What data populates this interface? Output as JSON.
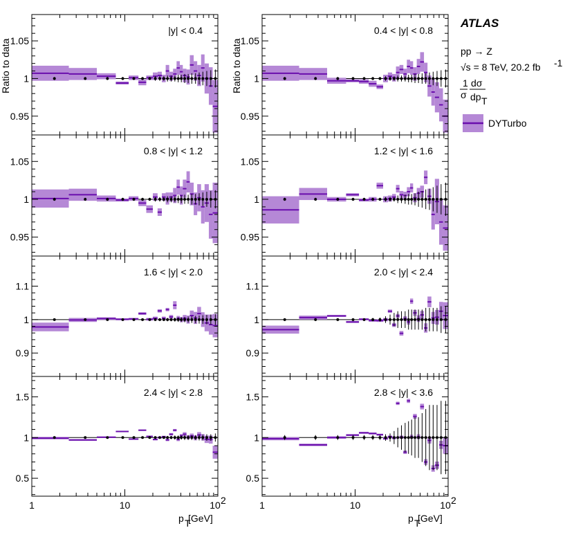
{
  "colors": {
    "band": "#b588d6",
    "line": "#6a0dad",
    "data": "#000000"
  },
  "legend": {
    "experiment": "ATLAS",
    "process": "pp → Z",
    "energy_prefix": "√s = 8 TeV, 20.2 fb",
    "energy_sup": "-1",
    "observable_num": "1",
    "observable_den": "σ",
    "observable_dnum": "dσ",
    "observable_dden": "dp",
    "observable_dsub": "T",
    "entry": "DYTurbo"
  },
  "axes": {
    "ylabel": "Ratio to data",
    "xlabel_main": "p",
    "xlabel_sub": "T",
    "xlabel_unit": " [GeV]",
    "x_ticklabels": [
      "1",
      "10",
      "10"
    ],
    "x_tick_sup": "2"
  },
  "chart_data": {
    "type": "line",
    "xscale": "log",
    "xlim": [
      1,
      100
    ],
    "x_bin_edges": [
      1,
      2.5,
      5,
      8,
      11,
      14,
      17,
      20,
      22.5,
      25,
      27.5,
      30,
      33,
      36,
      39,
      42,
      46,
      50,
      55,
      60,
      66,
      72,
      80,
      88,
      100
    ],
    "x": [
      1.75,
      3.75,
      6.5,
      9.5,
      12.5,
      15.5,
      18.5,
      21.25,
      23.75,
      26.25,
      28.75,
      31.5,
      34.5,
      37.5,
      40.5,
      44,
      48,
      52.5,
      57.5,
      63,
      69,
      76,
      84,
      94
    ],
    "panels": [
      {
        "label": "|y| < 0.4",
        "ylim": [
          0.925,
          1.085
        ],
        "yticks": [
          0.95,
          1,
          1.05
        ],
        "yticklabels": [
          "0.95",
          "1",
          "1.05"
        ],
        "data_err": [
          0.002,
          0.002,
          0.002,
          0.002,
          0.002,
          0.002,
          0.002,
          0.003,
          0.003,
          0.003,
          0.004,
          0.004,
          0.004,
          0.005,
          0.005,
          0.006,
          0.006,
          0.007,
          0.007,
          0.008,
          0.009,
          0.01,
          0.011,
          0.012
        ],
        "values": [
          1.007,
          1.006,
          1.003,
          0.994,
          1.001,
          0.995,
          1.001,
          1.003,
          1.004,
          1.0,
          1.01,
          1.003,
          1.006,
          1.014,
          1.009,
          1.004,
          1.002,
          1.018,
          1.01,
          1.004,
          1.014,
          1.0,
          0.99,
          0.963
        ],
        "band_half": [
          0.01,
          0.008,
          0.004,
          0.002,
          0.003,
          0.004,
          0.003,
          0.005,
          0.005,
          0.005,
          0.008,
          0.006,
          0.007,
          0.009,
          0.009,
          0.009,
          0.01,
          0.013,
          0.013,
          0.014,
          0.018,
          0.02,
          0.025,
          0.035
        ]
      },
      {
        "label": "0.4 < |y| < 0.8",
        "ylim": [
          0.925,
          1.085
        ],
        "yticks": [
          0.95,
          1,
          1.05
        ],
        "yticklabels": [
          "0.95",
          "1",
          "1.05"
        ],
        "data_err": [
          0.002,
          0.002,
          0.002,
          0.002,
          0.002,
          0.002,
          0.002,
          0.003,
          0.003,
          0.003,
          0.004,
          0.004,
          0.004,
          0.005,
          0.005,
          0.006,
          0.006,
          0.007,
          0.007,
          0.008,
          0.009,
          0.01,
          0.011,
          0.012
        ],
        "values": [
          1.007,
          1.006,
          0.997,
          0.997,
          0.996,
          0.993,
          0.989,
          1.0,
          1.003,
          1.001,
          1.008,
          1.012,
          1.006,
          1.016,
          1.014,
          1.006,
          1.016,
          1.022,
          1.008,
          0.99,
          0.982,
          0.975,
          0.965,
          0.95
        ],
        "band_half": [
          0.01,
          0.008,
          0.004,
          0.002,
          0.003,
          0.004,
          0.003,
          0.005,
          0.005,
          0.005,
          0.008,
          0.006,
          0.007,
          0.009,
          0.009,
          0.009,
          0.01,
          0.013,
          0.013,
          0.014,
          0.018,
          0.02,
          0.022,
          0.022
        ]
      },
      {
        "label": "0.8 < |y| < 1.2",
        "ylim": [
          0.925,
          1.085
        ],
        "yticks": [
          0.95,
          1,
          1.05
        ],
        "yticklabels": [
          "0.95",
          "1",
          "1.05"
        ],
        "data_err": [
          0.002,
          0.002,
          0.002,
          0.002,
          0.002,
          0.002,
          0.002,
          0.003,
          0.003,
          0.003,
          0.004,
          0.004,
          0.004,
          0.005,
          0.005,
          0.006,
          0.006,
          0.007,
          0.007,
          0.008,
          0.009,
          0.01,
          0.011,
          0.012
        ],
        "values": [
          1.001,
          1.006,
          1.001,
          0.999,
          1.001,
          0.995,
          0.987,
          1.003,
          0.983,
          1.003,
          1.001,
          1.003,
          1.005,
          1.016,
          1.005,
          1.014,
          1.023,
          1.007,
          0.994,
          1.002,
          0.99,
          0.995,
          0.98,
          0.982
        ],
        "band_half": [
          0.012,
          0.008,
          0.004,
          0.002,
          0.003,
          0.004,
          0.005,
          0.005,
          0.005,
          0.005,
          0.008,
          0.006,
          0.01,
          0.01,
          0.012,
          0.012,
          0.014,
          0.015,
          0.015,
          0.018,
          0.022,
          0.025,
          0.032,
          0.04
        ]
      },
      {
        "label": "1.2 < |y| < 1.6",
        "ylim": [
          0.925,
          1.085
        ],
        "yticks": [
          0.95,
          1,
          1.05
        ],
        "yticklabels": [
          "0.95",
          "1",
          "1.05"
        ],
        "data_err": [
          0.002,
          0.002,
          0.002,
          0.002,
          0.002,
          0.002,
          0.002,
          0.003,
          0.003,
          0.003,
          0.005,
          0.005,
          0.006,
          0.007,
          0.007,
          0.008,
          0.01,
          0.011,
          0.013,
          0.014,
          0.016,
          0.018,
          0.02,
          0.022
        ],
        "values": [
          0.986,
          1.007,
          1.0,
          1.006,
          0.999,
          1.0,
          1.018,
          1.0,
          1.001,
          1.003,
          1.014,
          1.006,
          1.005,
          1.01,
          1.015,
          1.002,
          1.008,
          1.01,
          1.029,
          1.004,
          0.98,
          0.997,
          0.97,
          0.962
        ],
        "band_half": [
          0.018,
          0.008,
          0.003,
          0.002,
          0.002,
          0.003,
          0.004,
          0.004,
          0.004,
          0.004,
          0.005,
          0.005,
          0.005,
          0.006,
          0.006,
          0.006,
          0.007,
          0.008,
          0.009,
          0.01,
          0.02,
          0.03,
          0.03,
          0.03
        ]
      },
      {
        "label": "1.6 < |y| < 2.0",
        "ylim": [
          0.83,
          1.19
        ],
        "yticks": [
          0.9,
          1,
          1.1
        ],
        "yticklabels": [
          "0.9",
          "1",
          "1.1"
        ],
        "data_err": [
          0.003,
          0.003,
          0.003,
          0.003,
          0.003,
          0.003,
          0.003,
          0.004,
          0.004,
          0.004,
          0.005,
          0.005,
          0.006,
          0.007,
          0.007,
          0.008,
          0.009,
          0.01,
          0.011,
          0.012,
          0.013,
          0.014,
          0.015,
          0.016
        ],
        "values": [
          0.978,
          0.999,
          1.003,
          1.001,
          1.002,
          1.018,
          1.001,
          1.004,
          1.026,
          1.004,
          1.03,
          1.008,
          1.043,
          1.004,
          1.0,
          1.004,
          1.0,
          1.012,
          1.005,
          1.018,
          1.0,
          0.99,
          0.985,
          0.982
        ],
        "band_half": [
          0.013,
          0.006,
          0.004,
          0.003,
          0.003,
          0.004,
          0.004,
          0.005,
          0.005,
          0.005,
          0.005,
          0.006,
          0.012,
          0.007,
          0.008,
          0.01,
          0.012,
          0.015,
          0.018,
          0.02,
          0.022,
          0.025,
          0.03,
          0.035
        ]
      },
      {
        "label": "2.0 < |y| < 2.4",
        "ylim": [
          0.83,
          1.19
        ],
        "yticks": [
          0.9,
          1,
          1.1
        ],
        "yticklabels": [
          "0.9",
          "1",
          "1.1"
        ],
        "data_err": [
          0.004,
          0.004,
          0.004,
          0.004,
          0.004,
          0.005,
          0.006,
          0.01,
          0.015,
          0.02,
          0.025,
          0.025,
          0.025,
          0.03,
          0.03,
          0.03,
          0.03,
          0.03,
          0.035,
          0.035,
          0.035,
          0.035,
          0.04,
          0.04
        ],
        "values": [
          0.97,
          1.006,
          1.011,
          0.993,
          1.001,
          0.997,
          0.997,
          1.0,
          1.025,
          0.984,
          1.011,
          0.959,
          1.003,
          0.993,
          1.055,
          1.02,
          1.003,
          1.014,
          0.975,
          1.053,
          1.005,
          1.007,
          1.025,
          1.012
        ],
        "band_half": [
          0.012,
          0.006,
          0.003,
          0.003,
          0.003,
          0.003,
          0.004,
          0.005,
          0.005,
          0.006,
          0.006,
          0.007,
          0.007,
          0.008,
          0.008,
          0.009,
          0.01,
          0.012,
          0.014,
          0.016,
          0.018,
          0.022,
          0.028,
          0.04
        ]
      },
      {
        "label": "2.4 < |y| < 2.8",
        "ylim": [
          0.28,
          1.75
        ],
        "yticks": [
          0.5,
          1,
          1.5
        ],
        "yticklabels": [
          "0.5",
          "1",
          "1.5"
        ],
        "data_err": [
          0.01,
          0.01,
          0.01,
          0.01,
          0.01,
          0.01,
          0.01,
          0.015,
          0.015,
          0.015,
          0.02,
          0.02,
          0.025,
          0.025,
          0.025,
          0.03,
          0.03,
          0.03,
          0.03,
          0.035,
          0.035,
          0.04,
          0.04,
          0.05
        ],
        "values": [
          0.993,
          0.97,
          1.004,
          1.075,
          0.981,
          1.09,
          1.014,
          0.976,
          1.0,
          1.011,
          0.971,
          1.04,
          1.09,
          0.976,
          1.023,
          1.041,
          1.003,
          1.019,
          0.996,
          1.032,
          1.003,
          0.978,
          0.975,
          0.82
        ],
        "band_half": [
          0.015,
          0.01,
          0.008,
          0.008,
          0.008,
          0.008,
          0.008,
          0.01,
          0.01,
          0.01,
          0.015,
          0.015,
          0.015,
          0.02,
          0.02,
          0.025,
          0.025,
          0.03,
          0.03,
          0.035,
          0.04,
          0.045,
          0.05,
          0.08
        ]
      },
      {
        "label": "2.8 < |y| < 3.6",
        "ylim": [
          0.28,
          1.75
        ],
        "yticks": [
          0.5,
          1,
          1.5
        ],
        "yticklabels": [
          "0.5",
          "1",
          "1.5"
        ],
        "data_err": [
          0.03,
          0.03,
          0.03,
          0.03,
          0.03,
          0.03,
          0.03,
          0.04,
          0.05,
          0.08,
          0.12,
          0.15,
          0.18,
          0.2,
          0.22,
          0.25,
          0.25,
          0.3,
          0.35,
          0.4,
          0.4,
          0.4,
          0.45,
          0.45
        ],
        "values": [
          0.986,
          0.91,
          1.0,
          1.03,
          1.058,
          1.05,
          1.035,
          0.988,
          1.01,
          0.995,
          1.42,
          1.005,
          0.82,
          1.45,
          1.01,
          1.26,
          1.01,
          1.38,
          0.7,
          0.965,
          0.62,
          0.66,
          0.91,
          0.9
        ],
        "band_half": [
          0.02,
          0.015,
          0.015,
          0.012,
          0.012,
          0.012,
          0.012,
          0.015,
          0.015,
          0.018,
          0.02,
          0.02,
          0.022,
          0.025,
          0.025,
          0.03,
          0.03,
          0.035,
          0.035,
          0.04,
          0.04,
          0.045,
          0.05,
          0.1
        ]
      }
    ]
  }
}
